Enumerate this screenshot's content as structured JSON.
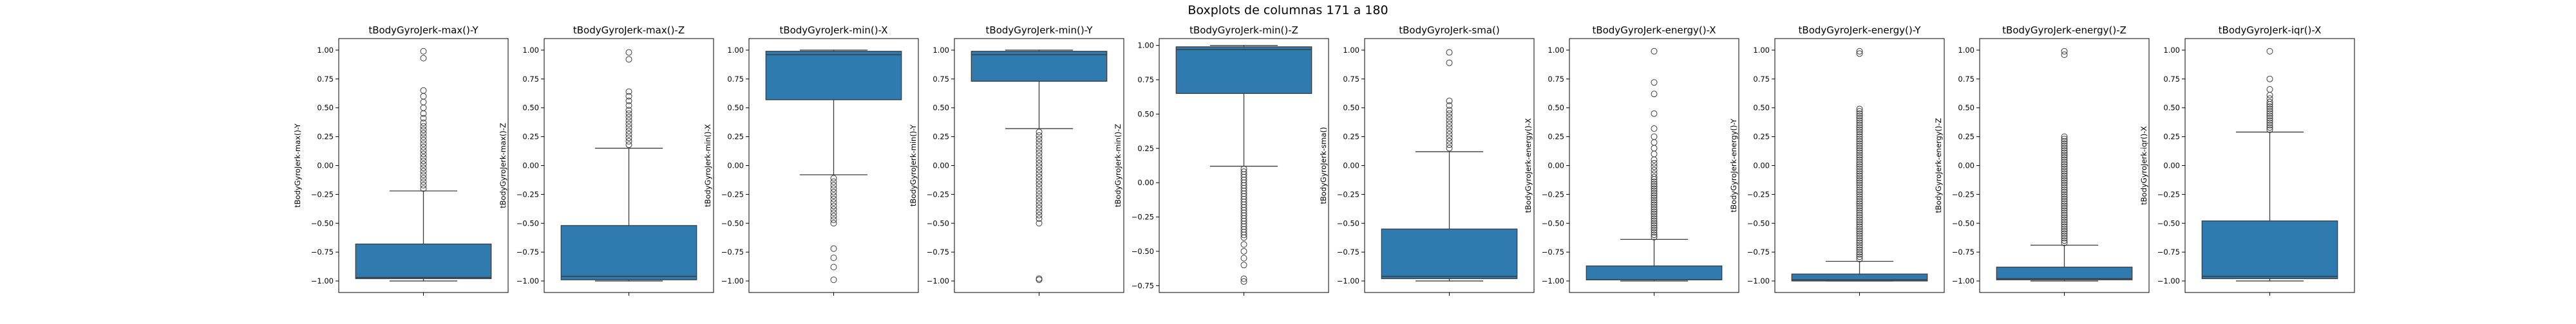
{
  "figure": {
    "title": "Boxplots de columnas 171 a 180"
  },
  "chart_data": [
    {
      "type": "box",
      "title": "tBodyGyroJerk-max()-Y",
      "ylabel": "tBodyGyroJerk-max()-Y",
      "ylim": [
        -1.1,
        1.1
      ],
      "yticks": [
        -1.0,
        -0.75,
        -0.5,
        -0.25,
        0.0,
        0.25,
        0.5,
        0.75,
        1.0
      ],
      "ytick_labels": [
        "−1.00",
        "−0.75",
        "−0.50",
        "−0.25",
        "0.00",
        "0.25",
        "0.50",
        "0.75",
        "1.00"
      ],
      "color": "#2f7bb0",
      "box": {
        "q1": -0.98,
        "median": -0.97,
        "q3": -0.68,
        "whisker_low": -1.0,
        "whisker_high": -0.22
      },
      "outliers": [
        -0.2,
        -0.17,
        -0.14,
        -0.11,
        -0.08,
        -0.05,
        -0.02,
        0.01,
        0.04,
        0.07,
        0.1,
        0.13,
        0.16,
        0.19,
        0.22,
        0.25,
        0.28,
        0.31,
        0.34,
        0.37,
        0.41,
        0.45,
        0.5,
        0.55,
        0.6,
        0.65,
        0.93,
        0.99
      ]
    },
    {
      "type": "box",
      "title": "tBodyGyroJerk-max()-Z",
      "ylabel": "tBodyGyroJerk-max()-Z",
      "ylim": [
        -1.1,
        1.1
      ],
      "yticks": [
        -1.0,
        -0.75,
        -0.5,
        -0.25,
        0.0,
        0.25,
        0.5,
        0.75,
        1.0
      ],
      "ytick_labels": [
        "−1.00",
        "−0.75",
        "−0.50",
        "−0.25",
        "0.00",
        "0.25",
        "0.50",
        "0.75",
        "1.00"
      ],
      "color": "#2f7bb0",
      "box": {
        "q1": -0.99,
        "median": -0.96,
        "q3": -0.52,
        "whisker_low": -1.0,
        "whisker_high": 0.15
      },
      "outliers": [
        0.18,
        0.21,
        0.24,
        0.27,
        0.3,
        0.33,
        0.36,
        0.39,
        0.42,
        0.45,
        0.48,
        0.52,
        0.56,
        0.6,
        0.64,
        0.92,
        0.98
      ]
    },
    {
      "type": "box",
      "title": "tBodyGyroJerk-min()-X",
      "ylabel": "tBodyGyroJerk-min()-X",
      "ylim": [
        -1.1,
        1.1
      ],
      "yticks": [
        -1.0,
        -0.75,
        -0.5,
        -0.25,
        0.0,
        0.25,
        0.5,
        0.75,
        1.0
      ],
      "ytick_labels": [
        "−1.00",
        "−0.75",
        "−0.50",
        "−0.25",
        "0.00",
        "0.25",
        "0.50",
        "0.75",
        "1.00"
      ],
      "color": "#2f7bb0",
      "box": {
        "q1": 0.57,
        "median": 0.96,
        "q3": 0.99,
        "whisker_low": -0.08,
        "whisker_high": 1.0
      },
      "outliers": [
        -0.11,
        -0.14,
        -0.17,
        -0.2,
        -0.23,
        -0.26,
        -0.29,
        -0.32,
        -0.35,
        -0.38,
        -0.41,
        -0.44,
        -0.47,
        -0.5,
        -0.72,
        -0.8,
        -0.88,
        -0.99
      ]
    },
    {
      "type": "box",
      "title": "tBodyGyroJerk-min()-Y",
      "ylabel": "tBodyGyroJerk-min()-Y",
      "ylim": [
        -1.1,
        1.1
      ],
      "yticks": [
        -1.0,
        -0.75,
        -0.5,
        -0.25,
        0.0,
        0.25,
        0.5,
        0.75,
        1.0
      ],
      "ytick_labels": [
        "−1.00",
        "−0.75",
        "−0.50",
        "−0.25",
        "0.00",
        "0.25",
        "0.50",
        "0.75",
        "1.00"
      ],
      "color": "#2f7bb0",
      "box": {
        "q1": 0.73,
        "median": 0.96,
        "q3": 0.99,
        "whisker_low": 0.32,
        "whisker_high": 1.0
      },
      "outliers": [
        0.29,
        0.26,
        0.23,
        0.2,
        0.17,
        0.14,
        0.11,
        0.08,
        0.05,
        0.02,
        -0.01,
        -0.04,
        -0.07,
        -0.1,
        -0.13,
        -0.16,
        -0.19,
        -0.22,
        -0.25,
        -0.28,
        -0.31,
        -0.34,
        -0.37,
        -0.4,
        -0.43,
        -0.46,
        -0.5,
        -0.98,
        -0.99
      ]
    },
    {
      "type": "box",
      "title": "tBodyGyroJerk-min()-Z",
      "ylabel": "tBodyGyroJerk-min()-Z",
      "ylim": [
        -0.8,
        1.05
      ],
      "yticks": [
        -0.75,
        -0.5,
        -0.25,
        0.0,
        0.25,
        0.5,
        0.75,
        1.0
      ],
      "ytick_labels": [
        "−0.75",
        "−0.50",
        "−0.25",
        "0.00",
        "0.25",
        "0.50",
        "0.75",
        "1.00"
      ],
      "color": "#2f7bb0",
      "box": {
        "q1": 0.65,
        "median": 0.97,
        "q3": 0.99,
        "whisker_low": 0.12,
        "whisker_high": 1.0
      },
      "outliers": [
        0.1,
        0.08,
        0.06,
        0.04,
        0.02,
        0.0,
        -0.02,
        -0.04,
        -0.06,
        -0.08,
        -0.1,
        -0.12,
        -0.14,
        -0.16,
        -0.18,
        -0.2,
        -0.22,
        -0.24,
        -0.26,
        -0.28,
        -0.3,
        -0.32,
        -0.34,
        -0.36,
        -0.38,
        -0.4,
        -0.45,
        -0.5,
        -0.55,
        -0.6,
        -0.7,
        -0.72
      ]
    },
    {
      "type": "box",
      "title": "tBodyGyroJerk-sma()",
      "ylabel": "tBodyGyroJerk-sma()",
      "ylim": [
        -1.1,
        1.1
      ],
      "yticks": [
        -1.0,
        -0.75,
        -0.5,
        -0.25,
        0.0,
        0.25,
        0.5,
        0.75,
        1.0
      ],
      "ytick_labels": [
        "−1.00",
        "−0.75",
        "−0.50",
        "−0.25",
        "0.00",
        "0.25",
        "0.50",
        "0.75",
        "1.00"
      ],
      "color": "#2f7bb0",
      "box": {
        "q1": -0.98,
        "median": -0.96,
        "q3": -0.55,
        "whisker_low": -1.0,
        "whisker_high": 0.12
      },
      "outliers": [
        0.15,
        0.18,
        0.21,
        0.24,
        0.27,
        0.3,
        0.33,
        0.36,
        0.39,
        0.42,
        0.45,
        0.48,
        0.52,
        0.56,
        0.89,
        0.98
      ]
    },
    {
      "type": "box",
      "title": "tBodyGyroJerk-energy()-X",
      "ylabel": "tBodyGyroJerk-energy()-X",
      "ylim": [
        -1.1,
        1.1
      ],
      "yticks": [
        -1.0,
        -0.75,
        -0.5,
        -0.25,
        0.0,
        0.25,
        0.5,
        0.75,
        1.0
      ],
      "ytick_labels": [
        "−1.00",
        "−0.75",
        "−0.50",
        "−0.25",
        "0.00",
        "0.25",
        "0.50",
        "0.75",
        "1.00"
      ],
      "color": "#2f7bb0",
      "box": {
        "q1": -0.99,
        "median": -0.99,
        "q3": -0.87,
        "whisker_low": -1.0,
        "whisker_high": -0.64
      },
      "outliers": [
        -0.62,
        -0.6,
        -0.58,
        -0.56,
        -0.54,
        -0.52,
        -0.5,
        -0.48,
        -0.46,
        -0.44,
        -0.42,
        -0.4,
        -0.38,
        -0.36,
        -0.34,
        -0.32,
        -0.3,
        -0.28,
        -0.26,
        -0.24,
        -0.22,
        -0.2,
        -0.18,
        -0.16,
        -0.14,
        -0.12,
        -0.1,
        -0.07,
        -0.04,
        -0.01,
        0.02,
        0.05,
        0.1,
        0.15,
        0.2,
        0.25,
        0.32,
        0.45,
        0.62,
        0.72,
        0.99
      ]
    },
    {
      "type": "box",
      "title": "tBodyGyroJerk-energy()-Y",
      "ylabel": "tBodyGyroJerk-energy()-Y",
      "ylim": [
        -1.1,
        1.1
      ],
      "yticks": [
        -1.0,
        -0.75,
        -0.5,
        -0.25,
        0.0,
        0.25,
        0.5,
        0.75,
        1.0
      ],
      "ytick_labels": [
        "−1.00",
        "−0.75",
        "−0.50",
        "−0.25",
        "0.00",
        "0.25",
        "0.50",
        "0.75",
        "1.00"
      ],
      "color": "#2f7bb0",
      "box": {
        "q1": -1.0,
        "median": -0.99,
        "q3": -0.94,
        "whisker_low": -1.0,
        "whisker_high": -0.83
      },
      "outliers": [
        -0.81,
        -0.79,
        -0.77,
        -0.75,
        -0.73,
        -0.71,
        -0.69,
        -0.67,
        -0.65,
        -0.63,
        -0.61,
        -0.59,
        -0.57,
        -0.55,
        -0.53,
        -0.51,
        -0.49,
        -0.47,
        -0.45,
        -0.43,
        -0.41,
        -0.39,
        -0.37,
        -0.35,
        -0.33,
        -0.31,
        -0.29,
        -0.27,
        -0.25,
        -0.23,
        -0.21,
        -0.19,
        -0.17,
        -0.15,
        -0.13,
        -0.11,
        -0.09,
        -0.07,
        -0.05,
        -0.03,
        -0.01,
        0.01,
        0.03,
        0.05,
        0.07,
        0.09,
        0.11,
        0.13,
        0.15,
        0.17,
        0.19,
        0.21,
        0.23,
        0.25,
        0.27,
        0.29,
        0.31,
        0.33,
        0.35,
        0.37,
        0.39,
        0.41,
        0.43,
        0.45,
        0.47,
        0.49,
        0.97,
        0.99
      ]
    },
    {
      "type": "box",
      "title": "tBodyGyroJerk-energy()-Z",
      "ylabel": "tBodyGyroJerk-energy()-Z",
      "ylim": [
        -1.1,
        1.1
      ],
      "yticks": [
        -1.0,
        -0.75,
        -0.5,
        -0.25,
        0.0,
        0.25,
        0.5,
        0.75,
        1.0
      ],
      "ytick_labels": [
        "−1.00",
        "−0.75",
        "−0.50",
        "−0.25",
        "0.00",
        "0.25",
        "0.50",
        "0.75",
        "1.00"
      ],
      "color": "#2f7bb0",
      "box": {
        "q1": -0.99,
        "median": -0.98,
        "q3": -0.88,
        "whisker_low": -1.0,
        "whisker_high": -0.69
      },
      "outliers": [
        -0.67,
        -0.65,
        -0.63,
        -0.61,
        -0.59,
        -0.57,
        -0.55,
        -0.53,
        -0.51,
        -0.49,
        -0.47,
        -0.45,
        -0.43,
        -0.41,
        -0.39,
        -0.37,
        -0.35,
        -0.33,
        -0.31,
        -0.29,
        -0.27,
        -0.25,
        -0.23,
        -0.21,
        -0.19,
        -0.17,
        -0.15,
        -0.13,
        -0.11,
        -0.09,
        -0.07,
        -0.05,
        -0.03,
        -0.01,
        0.01,
        0.03,
        0.05,
        0.07,
        0.09,
        0.11,
        0.13,
        0.15,
        0.17,
        0.19,
        0.21,
        0.23,
        0.25,
        0.96,
        0.99
      ]
    },
    {
      "type": "box",
      "title": "tBodyGyroJerk-iqr()-X",
      "ylabel": "tBodyGyroJerk-iqr()-X",
      "ylim": [
        -1.1,
        1.1
      ],
      "yticks": [
        -1.0,
        -0.75,
        -0.5,
        -0.25,
        0.0,
        0.25,
        0.5,
        0.75,
        1.0
      ],
      "ytick_labels": [
        "−1.00",
        "−0.75",
        "−0.50",
        "−0.25",
        "0.00",
        "0.25",
        "0.50",
        "0.75",
        "1.00"
      ],
      "color": "#2f7bb0",
      "box": {
        "q1": -0.98,
        "median": -0.96,
        "q3": -0.48,
        "whisker_low": -1.0,
        "whisker_high": 0.29
      },
      "outliers": [
        0.31,
        0.33,
        0.35,
        0.37,
        0.39,
        0.41,
        0.43,
        0.45,
        0.47,
        0.49,
        0.51,
        0.53,
        0.55,
        0.58,
        0.61,
        0.66,
        0.75,
        0.99
      ]
    }
  ]
}
